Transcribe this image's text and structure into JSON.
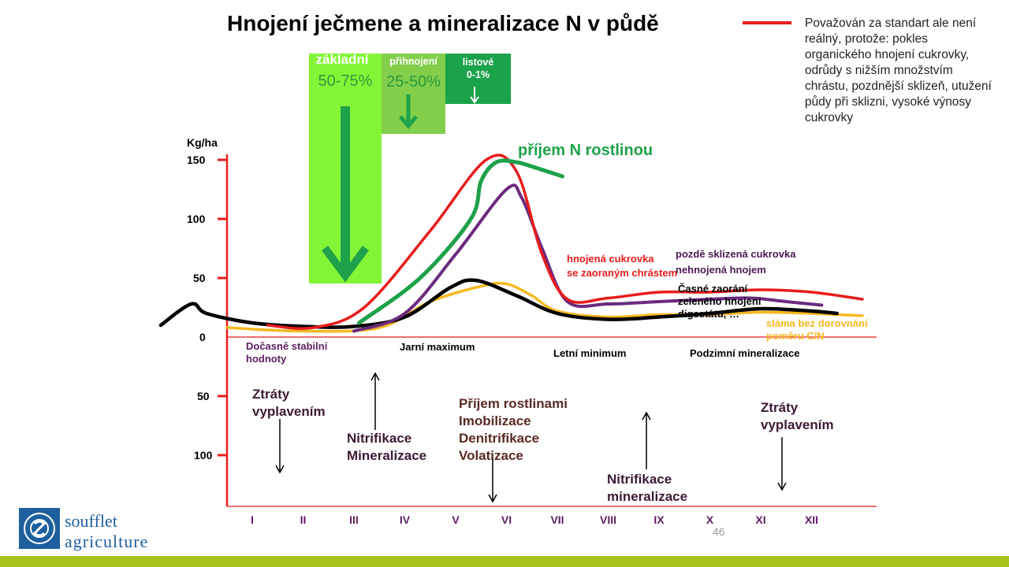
{
  "title": "Hnojení ječmene a mineralizace N v půdě",
  "legend": {
    "red_line_note": "Považován za standart ale není reálný, protože: pokles organického hnojení cukrovky, odrůdy s nižším množstvím chrástu, pozdnější sklizeň, utužení půdy při sklizni, vysoké výnosy cukrovky"
  },
  "fertilization_boxes": {
    "zakladni": {
      "label": "základní",
      "percent": "50-75%"
    },
    "prihnojeni": {
      "label": "přihnojení",
      "percent": "25-50%"
    },
    "listove": {
      "label": "listové",
      "percent": "0-1%"
    }
  },
  "chart_data": {
    "type": "line",
    "ylabel": "Kg/ha",
    "upper_y_ticks": [
      150,
      100,
      50,
      0
    ],
    "lower_y_ticks": [
      100,
      50
    ],
    "x": [
      "I",
      "II",
      "III",
      "IV",
      "V",
      "VI",
      "VII",
      "VIII",
      "IX",
      "X",
      "XI",
      "XII"
    ],
    "series": [
      {
        "name": "hnojená cukrovka se zaoraným chrástem",
        "color": "#e81c1c",
        "points": [
          [
            0.3,
            10
          ],
          [
            1.2,
            8
          ],
          [
            2.2,
            25
          ],
          [
            3.5,
            90
          ],
          [
            4.6,
            150
          ],
          [
            5.2,
            140
          ],
          [
            5.7,
            70
          ],
          [
            6.2,
            32
          ],
          [
            7,
            33
          ],
          [
            8,
            38
          ],
          [
            9,
            38
          ],
          [
            10,
            40
          ],
          [
            11,
            38
          ],
          [
            12,
            32
          ]
        ]
      },
      {
        "name": "příjem N rostlinou",
        "color": "#1ea14a",
        "points": [
          [
            2.1,
            12
          ],
          [
            3.3,
            50
          ],
          [
            4.3,
            100
          ],
          [
            4.5,
            132
          ],
          [
            4.8,
            148
          ],
          [
            5.2,
            148
          ],
          [
            5.6,
            143
          ],
          [
            6.1,
            136
          ]
        ]
      },
      {
        "name": "pozdě sklizená cukrovka nehnojená hnojem",
        "color": "#6b2a7e",
        "points": [
          [
            2.0,
            5
          ],
          [
            3.0,
            20
          ],
          [
            4.0,
            70
          ],
          [
            5.0,
            125
          ],
          [
            5.3,
            118
          ],
          [
            5.7,
            75
          ],
          [
            6.2,
            30
          ],
          [
            7,
            28
          ],
          [
            8,
            30
          ],
          [
            9,
            32
          ],
          [
            9.8,
            33
          ],
          [
            10.5,
            30
          ],
          [
            11.2,
            27
          ]
        ]
      },
      {
        "name": "Časné zaorání zeleného hnojení digestátu, …",
        "color": "#000000",
        "points": [
          [
            -1.8,
            10
          ],
          [
            -1.2,
            28
          ],
          [
            -0.9,
            20
          ],
          [
            0,
            12
          ],
          [
            1,
            9
          ],
          [
            2,
            9
          ],
          [
            3,
            17
          ],
          [
            3.9,
            42
          ],
          [
            4.4,
            48
          ],
          [
            5.2,
            35
          ],
          [
            6,
            20
          ],
          [
            7,
            15
          ],
          [
            8,
            17
          ],
          [
            9,
            20
          ],
          [
            10,
            24
          ],
          [
            11,
            22
          ],
          [
            11.5,
            20
          ]
        ]
      },
      {
        "name": "sláma bez dorovnání poměru C/N",
        "color": "#f5b820",
        "points": [
          [
            -0.5,
            8
          ],
          [
            1,
            5
          ],
          [
            2.5,
            8
          ],
          [
            3.5,
            30
          ],
          [
            4.5,
            43
          ],
          [
            5,
            45
          ],
          [
            5.5,
            35
          ],
          [
            6,
            22
          ],
          [
            7,
            17
          ],
          [
            8,
            19
          ],
          [
            9,
            19
          ],
          [
            10,
            21
          ],
          [
            11,
            20
          ],
          [
            12,
            18
          ]
        ]
      }
    ],
    "annotations": {
      "curve_labels": {
        "red": "hnojená cukrovka\nse zaoraným chrástem",
        "purple": "pozdě sklizená cukrovka\nnehnojená hnojem",
        "black": "Časné zaorání\nzeleného hnojení\ndigestátu, …",
        "yellow": "sláma bez dorovnání\npoměru C/N",
        "green": "příjem N rostlinou"
      },
      "phases": [
        "Dočasně stabilní\nhodnoty",
        "Jarní maximum",
        "Letní minimum",
        "Podzimní mineralizace"
      ],
      "processes": [
        {
          "text": "Ztráty\nvyplavením",
          "dir": "down"
        },
        {
          "text": "Nitrifikace\nMineralizace",
          "dir": "up"
        },
        {
          "text": "Příjem rostlinami\nImobilizace\nDenitrifikace\nVolatizace",
          "dir": "down"
        },
        {
          "text": "Nitrifikace\nmineralizace",
          "dir": "up"
        },
        {
          "text": "Ztráty\nvyplavením",
          "dir": "down"
        }
      ]
    }
  },
  "colors": {
    "axis_red": "#e81c1c",
    "footer_bar": "#a8c41a",
    "logo_blue": "#1d5f9f"
  },
  "logo": {
    "line1": "soufflet",
    "line2": "agriculture",
    "icon": "soufflet-logo-icon"
  },
  "page_number": "46"
}
